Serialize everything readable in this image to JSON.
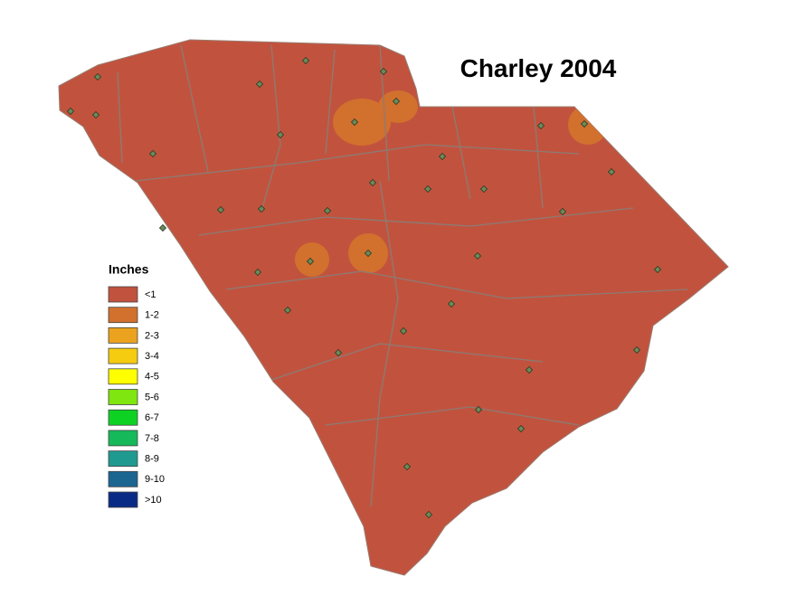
{
  "title": "Charley 2004",
  "legend": {
    "title": "Inches",
    "items": [
      {
        "label": "<1",
        "color": "#c1533e"
      },
      {
        "label": "1-2",
        "color": "#d2702e"
      },
      {
        "label": "2-3",
        "color": "#eba21e"
      },
      {
        "label": "3-4",
        "color": "#f5cc10"
      },
      {
        "label": "4-5",
        "color": "#ffff00"
      },
      {
        "label": "5-6",
        "color": "#7fe60f"
      },
      {
        "label": "6-7",
        "color": "#0ed223"
      },
      {
        "label": "7-8",
        "color": "#15b95a"
      },
      {
        "label": "8-9",
        "color": "#1f9a90"
      },
      {
        "label": "9-10",
        "color": "#1a6690"
      },
      {
        "label": ">10",
        "color": "#0a2b85"
      }
    ]
  }
}
